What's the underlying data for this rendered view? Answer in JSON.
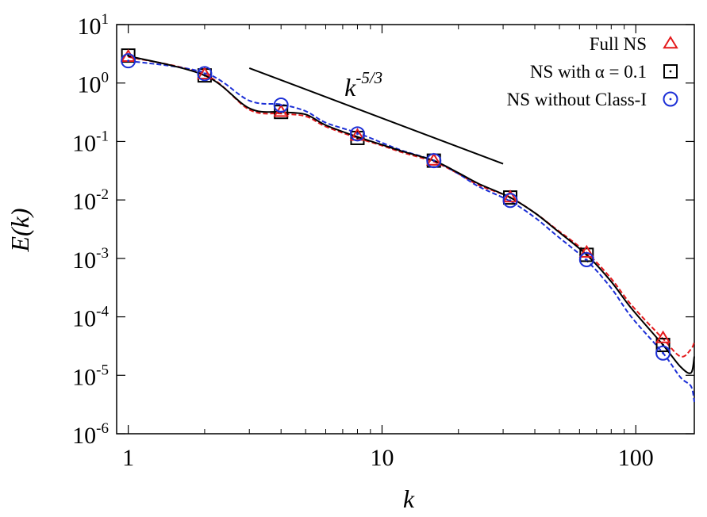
{
  "chart_data": {
    "type": "line",
    "title": "",
    "xlabel": "k",
    "ylabel": "E(k)",
    "x_scale": "log",
    "y_scale": "log",
    "xlim": [
      0.9,
      170
    ],
    "ylim": [
      1e-06,
      10
    ],
    "x_ticks": [
      {
        "value": 1,
        "label": "1"
      },
      {
        "value": 10,
        "label": "10"
      },
      {
        "value": 100,
        "label": "100"
      }
    ],
    "y_ticks": [
      {
        "value": 1e-06,
        "base": "10",
        "exp": "-6"
      },
      {
        "value": 1e-05,
        "base": "10",
        "exp": "-5"
      },
      {
        "value": 0.0001,
        "base": "10",
        "exp": "-4"
      },
      {
        "value": 0.001,
        "base": "10",
        "exp": "-3"
      },
      {
        "value": 0.01,
        "base": "10",
        "exp": "-2"
      },
      {
        "value": 0.1,
        "base": "10",
        "exp": "-1"
      },
      {
        "value": 1,
        "base": "10",
        "exp": "0"
      },
      {
        "value": 10,
        "base": "10",
        "exp": "1"
      }
    ],
    "grid": false,
    "legend_position": "top-right",
    "series": [
      {
        "name": "Full NS",
        "color": "#e41a1c",
        "line_style": "dashed",
        "marker": "triangle",
        "x": [
          1,
          2,
          3,
          4,
          5,
          6,
          8,
          10,
          12,
          16,
          20,
          24,
          32,
          40,
          48,
          64,
          80,
          96,
          128,
          150,
          165,
          170
        ],
        "y": [
          2.8,
          1.4,
          0.35,
          0.3,
          0.27,
          0.18,
          0.115,
          0.085,
          0.065,
          0.045,
          0.028,
          0.018,
          0.011,
          0.006,
          0.0033,
          0.00125,
          0.00045,
          0.00016,
          4.2e-05,
          2.1e-05,
          2.8e-05,
          3.7e-05
        ],
        "marker_x": [
          1,
          2,
          4,
          8,
          16,
          32,
          64,
          128
        ],
        "marker_y": [
          2.8,
          1.4,
          0.32,
          0.125,
          0.047,
          0.011,
          0.00125,
          4.3e-05
        ]
      },
      {
        "name": "NS with α = 0.1",
        "color": "#000000",
        "line_style": "solid",
        "marker": "square",
        "x": [
          1,
          2,
          3,
          4,
          5,
          6,
          8,
          10,
          12,
          16,
          20,
          24,
          32,
          40,
          48,
          64,
          80,
          96,
          128,
          150,
          165,
          170
        ],
        "y": [
          2.9,
          1.35,
          0.37,
          0.32,
          0.29,
          0.19,
          0.12,
          0.088,
          0.068,
          0.047,
          0.029,
          0.019,
          0.011,
          0.006,
          0.0032,
          0.00115,
          0.0004,
          0.00014,
          3.3e-05,
          1.4e-05,
          1.1e-05,
          2.1e-05
        ],
        "marker_x": [
          1,
          2,
          4,
          8,
          16,
          32,
          64,
          128
        ],
        "marker_y": [
          2.95,
          1.35,
          0.32,
          0.115,
          0.047,
          0.011,
          0.00115,
          3.3e-05
        ]
      },
      {
        "name": "NS without Class-I",
        "color": "#1c2fd6",
        "line_style": "dashed",
        "marker": "circle",
        "x": [
          1,
          2,
          3,
          4,
          5,
          6,
          8,
          10,
          12,
          16,
          20,
          24,
          32,
          40,
          48,
          64,
          80,
          96,
          128,
          150,
          165,
          170
        ],
        "y": [
          2.4,
          1.5,
          0.5,
          0.43,
          0.33,
          0.21,
          0.14,
          0.095,
          0.07,
          0.047,
          0.028,
          0.017,
          0.0095,
          0.005,
          0.0026,
          0.00092,
          0.00031,
          0.0001,
          2.4e-05,
          9.2e-06,
          6.5e-06,
          3.5e-06
        ],
        "marker_x": [
          1,
          2,
          4,
          8,
          16,
          32,
          64,
          128
        ],
        "marker_y": [
          2.4,
          1.45,
          0.42,
          0.135,
          0.047,
          0.0098,
          0.00095,
          2.4e-05
        ]
      }
    ],
    "annotations": [
      {
        "type": "reference_line",
        "label_base": "k",
        "label_exp": "-5/3",
        "color": "#000000",
        "x": [
          3,
          30
        ],
        "y": [
          1.8,
          0.0415
        ]
      }
    ]
  }
}
